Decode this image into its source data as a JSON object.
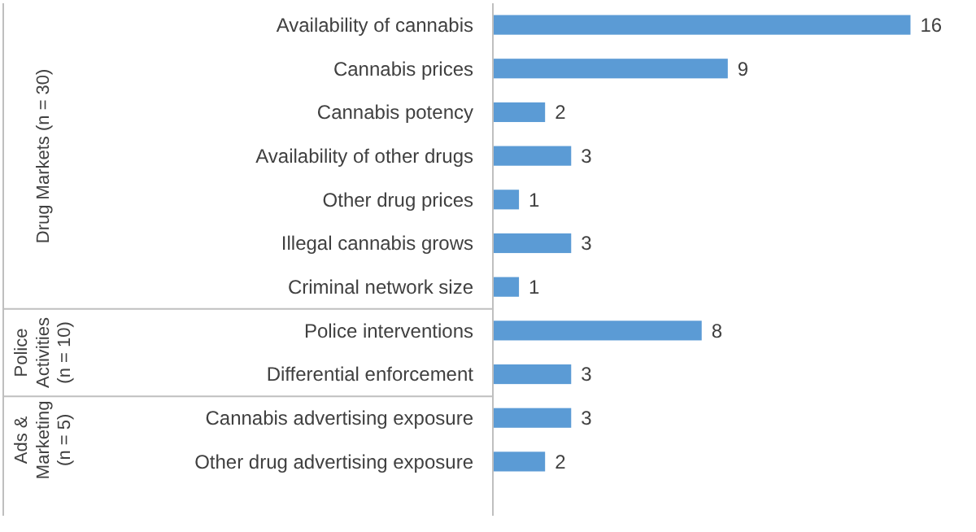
{
  "chart_data": {
    "type": "bar",
    "orientation": "horizontal",
    "categories": [
      "Availability of cannabis",
      "Cannabis prices",
      "Cannabis potency",
      "Availability of other drugs",
      "Other drug prices",
      "Illegal cannabis grows",
      "Criminal network size",
      "Police interventions",
      "Differential enforcement",
      "Cannabis advertising exposure",
      "Other drug advertising exposure"
    ],
    "values": [
      16,
      9,
      2,
      3,
      1,
      3,
      1,
      8,
      3,
      3,
      2
    ],
    "color": "#5b9bd5",
    "data_labels": true,
    "annotations": [
      "Drug Markets (n = 30)",
      "Police Activities (n = 10)",
      "Ads & Marketing (n = 5)"
    ]
  }
}
